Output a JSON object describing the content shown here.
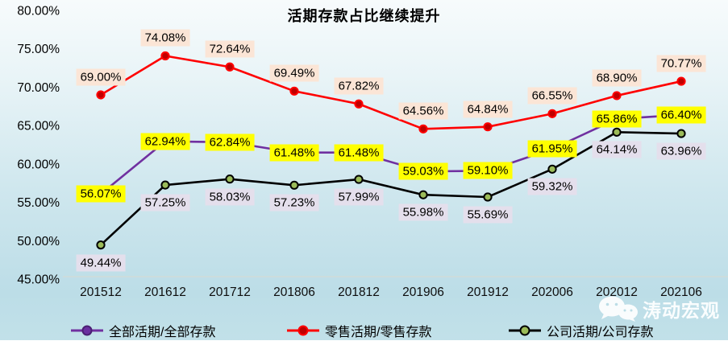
{
  "title": "活期存款占比继续提升",
  "watermark": {
    "text": "涛动宏观",
    "icon": "wechat-icon"
  },
  "chart_data": {
    "type": "line",
    "title": "活期存款占比继续提升",
    "categories": [
      "201512",
      "201612",
      "201712",
      "201806",
      "201812",
      "201906",
      "201912",
      "202006",
      "202012",
      "202106"
    ],
    "series": [
      {
        "name": "全部活期/全部存款",
        "color": "#7030A0",
        "marker_fill": "#6A2FA0",
        "marker_stroke": "#4A1F73",
        "label_bg": "#FFFF00",
        "label_dy": 0,
        "values": [
          56.07,
          62.94,
          62.84,
          61.48,
          61.48,
          59.03,
          59.1,
          61.95,
          65.86,
          66.4
        ]
      },
      {
        "name": "零售活期/零售存款",
        "color": "#FF0000",
        "marker_fill": "#C00000",
        "marker_stroke": "#FF0000",
        "label_bg": "#FBE5D6",
        "label_dy": -22,
        "values": [
          69.0,
          74.08,
          72.64,
          69.49,
          67.82,
          64.56,
          64.84,
          66.55,
          68.9,
          70.77
        ]
      },
      {
        "name": "公司活期/公司存款",
        "color": "#000000",
        "marker_fill": "#9BBB59",
        "marker_stroke": "#000000",
        "label_bg": "#E4DFEC",
        "label_dy": 22,
        "values": [
          49.44,
          57.25,
          58.03,
          57.23,
          57.99,
          55.98,
          55.69,
          59.32,
          64.14,
          63.96
        ]
      }
    ],
    "ylim": [
      45,
      80
    ],
    "ytick_step": 5,
    "ytick_format": "0.00%",
    "grid": false,
    "legend_position": "bottom",
    "axis_line_color": "#D9D9CF"
  }
}
